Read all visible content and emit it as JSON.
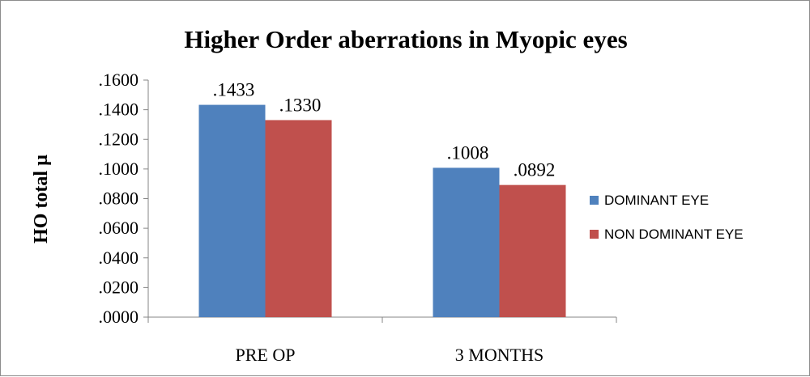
{
  "chart_data": {
    "type": "bar",
    "title": "Higher Order aberrations in Myopic eyes",
    "xlabel": "",
    "ylabel": "HO total µ",
    "categories": [
      "PRE OP",
      "3 MONTHS"
    ],
    "series": [
      {
        "name": "DOMINANT EYE",
        "values": [
          0.1433,
          0.1008
        ],
        "labels": [
          ".1433",
          ".1008"
        ],
        "color": "#4f81bd"
      },
      {
        "name": "NON DOMINANT EYE",
        "values": [
          0.133,
          0.0892
        ],
        "labels": [
          ".1330",
          ".0892"
        ],
        "color": "#c0504d"
      }
    ],
    "ylim": [
      0,
      0.16
    ],
    "yticks": [
      0,
      0.02,
      0.04,
      0.06,
      0.08,
      0.1,
      0.12,
      0.14,
      0.16
    ],
    "ytick_labels": [
      ".0000",
      ".0200",
      ".0400",
      ".0600",
      ".0800",
      ".1000",
      ".1200",
      ".1400",
      ".1600"
    ],
    "grid": false,
    "legend_position": "right"
  }
}
